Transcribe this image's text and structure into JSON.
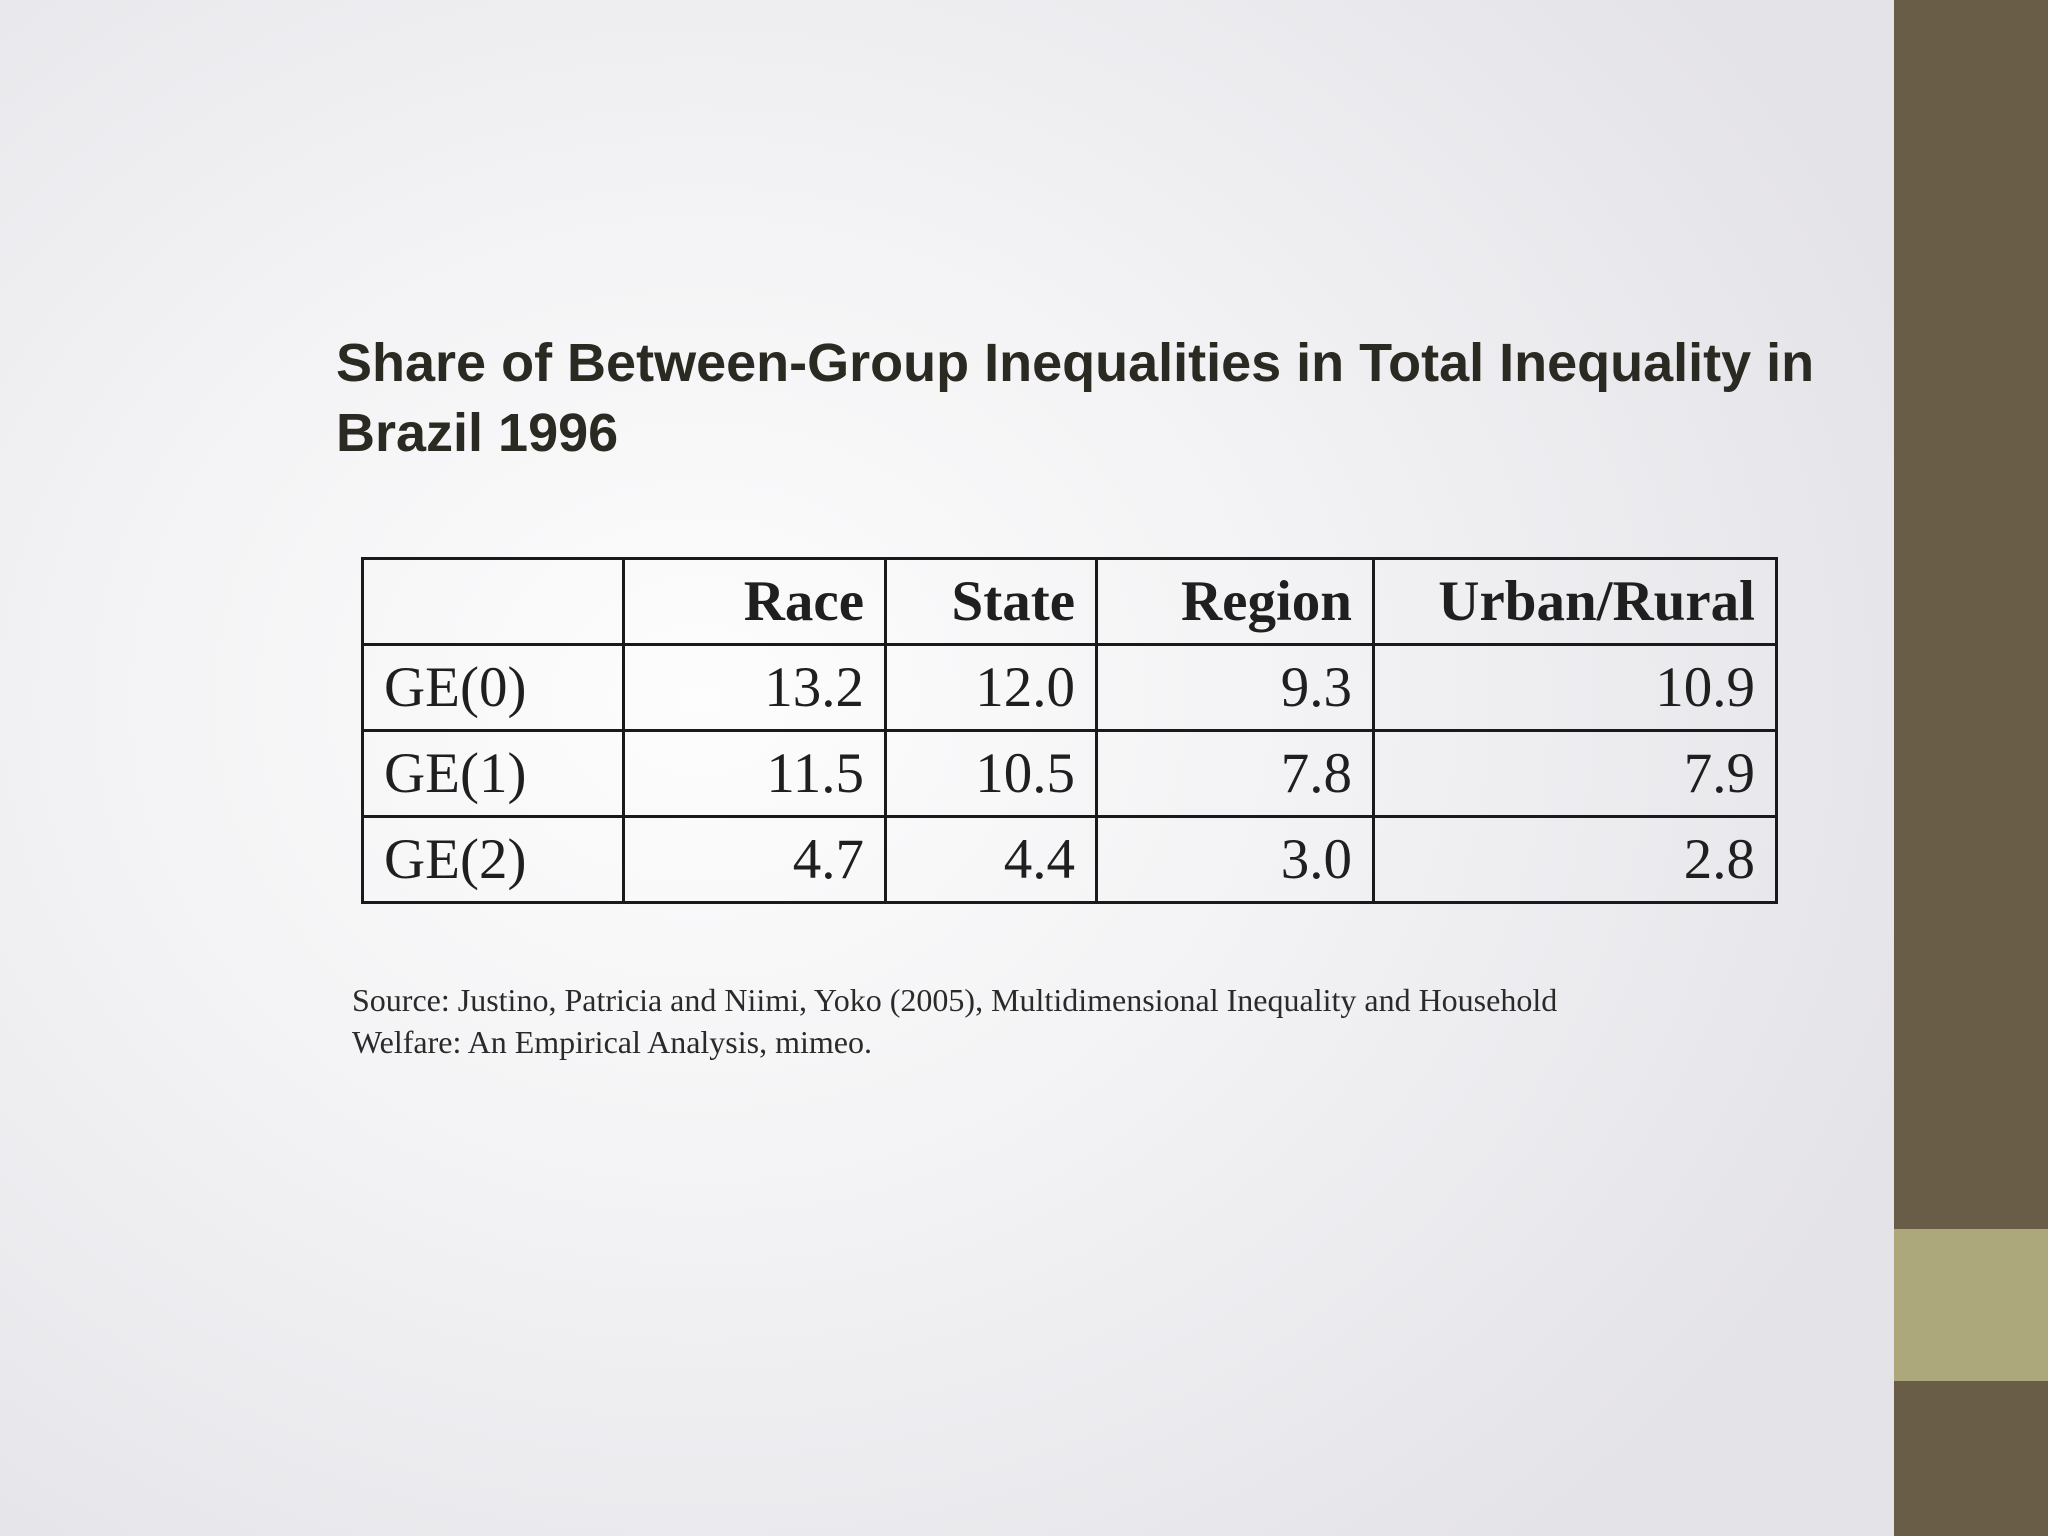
{
  "slide": {
    "title_lines": [
      "Share of Between-Group Inequalities in Total Inequality in",
      "Brazil 1996"
    ],
    "table": {
      "columns": [
        "",
        "Race",
        "State",
        "Region",
        "Urban/Rural"
      ],
      "rows": [
        {
          "label": "GE(0)",
          "values": [
            "13.2",
            "12.0",
            "9.3",
            "10.9"
          ]
        },
        {
          "label": "GE(1)",
          "values": [
            "11.5",
            "10.5",
            "7.8",
            "7.9"
          ]
        },
        {
          "label": "GE(2)",
          "values": [
            "4.7",
            "4.4",
            "3.0",
            "2.8"
          ]
        }
      ]
    },
    "source_lines": [
      "Source: Justino, Patricia and Niimi, Yoko (2005), Multidimensional Inequality and Household",
      "Welfare: An Empirical Analysis, mimeo."
    ]
  },
  "colors": {
    "sidebar_dark": "#695d47",
    "sidebar_accent": "#ada87b",
    "title_text": "#2b2a22",
    "table_border": "#1a1a1a"
  }
}
